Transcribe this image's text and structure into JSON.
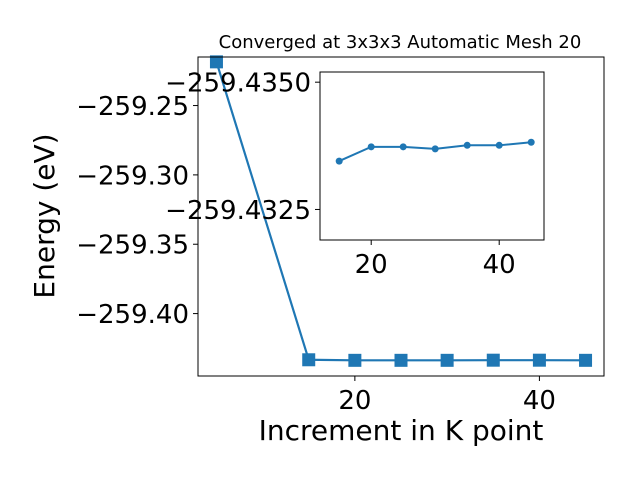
{
  "chart_data": [
    {
      "type": "line",
      "title": "Converged at 3x3x3 Automatic Mesh 20",
      "xlabel": "Increment in K point",
      "ylabel": "Energy (eV)",
      "xlim": [
        3,
        47
      ],
      "ylim": [
        -259.445,
        -259.215
      ],
      "x_ticks": [
        20,
        40
      ],
      "y_ticks": [
        -259.25,
        -259.3,
        -259.35,
        -259.4
      ],
      "x_tick_labels": [
        "20",
        "40"
      ],
      "y_tick_labels": [
        "−259.25",
        "−259.30",
        "−259.35",
        "−259.40"
      ],
      "marker": "square",
      "color": "#1f77b4",
      "series": [
        {
          "x": [
            5,
            15,
            20,
            25,
            30,
            35,
            40,
            45
          ],
          "values": [
            -259.2185,
            -259.4333,
            -259.4337,
            -259.4337,
            -259.4337,
            -259.4336,
            -259.4336,
            -259.4337
          ]
        }
      ]
    },
    {
      "type": "line",
      "title": "",
      "xlabel": "",
      "ylabel": "",
      "xlim": [
        12,
        47
      ],
      "ylim": [
        -259.4319,
        -259.4352
      ],
      "x_ticks": [
        20,
        40
      ],
      "y_ticks": [
        -259.435,
        -259.4325
      ],
      "x_tick_labels": [
        "20",
        "40"
      ],
      "y_tick_labels": [
        "−259.4350",
        "−259.4325"
      ],
      "marker": "circle",
      "color": "#1f77b4",
      "series": [
        {
          "x": [
            15,
            20,
            25,
            30,
            35,
            40,
            45
          ],
          "values": [
            -259.43345,
            -259.43373,
            -259.43373,
            -259.43369,
            -259.43376,
            -259.43376,
            -259.43382
          ]
        }
      ]
    }
  ]
}
